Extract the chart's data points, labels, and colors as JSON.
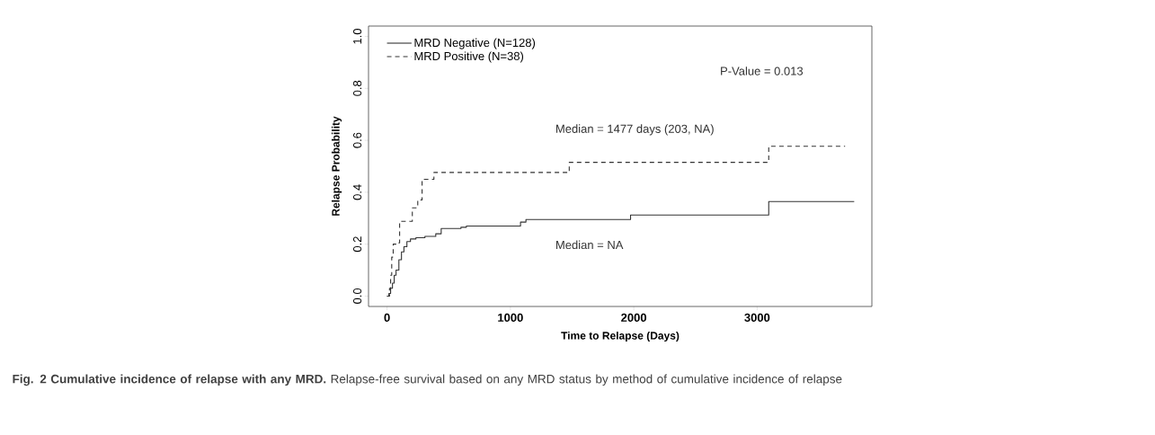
{
  "chart_data": {
    "type": "step",
    "xlabel": "Time to Relapse (Days)",
    "ylabel": "Relapse Probability",
    "series": [
      {
        "name": "MRD Negative (N=128)",
        "color": "#333333",
        "line_style": "solid",
        "x": [
          0,
          15,
          29,
          44,
          58,
          73,
          96,
          117,
          137,
          161,
          190,
          234,
          307,
          395,
          439,
          599,
          643,
          1082,
          1126,
          1974,
          3094,
          3787
        ],
        "values": [
          0,
          0.01,
          0.03,
          0.05,
          0.08,
          0.1,
          0.14,
          0.17,
          0.19,
          0.21,
          0.22,
          0.225,
          0.23,
          0.24,
          0.26,
          0.265,
          0.27,
          0.285,
          0.295,
          0.312,
          0.364,
          0.364
        ]
      },
      {
        "name": "MRD Positive (N=38)",
        "color": "#333333",
        "line_style": "dashed",
        "x": [
          0,
          20,
          29,
          38,
          50,
          94,
          102,
          205,
          249,
          284,
          380,
          1477,
          3094,
          3713
        ],
        "values": [
          0,
          0.03,
          0.08,
          0.15,
          0.2,
          0.205,
          0.288,
          0.34,
          0.37,
          0.45,
          0.476,
          0.515,
          0.577,
          0.577
        ]
      }
    ],
    "xlim": [
      -150,
      3930
    ],
    "ylim": [
      -0.04,
      1.04
    ],
    "xticks": [
      0,
      1000,
      2000,
      3000
    ],
    "yticks": [
      {
        "value": 0,
        "label": "0.0"
      },
      0.2,
      0.4,
      0.6,
      0.8,
      {
        "value": 1,
        "label": "1.0"
      }
    ],
    "legend": "top left",
    "annotations": [
      "Median = 1477 days (203, NA)",
      "Median = NA",
      "P-Value = 0.013",
      "**Fig. 2 Cumulative incidence of relapse with any MRD.** Relapse-free survival based on any MRD status by method of cumulative incidence of relapse"
    ]
  }
}
